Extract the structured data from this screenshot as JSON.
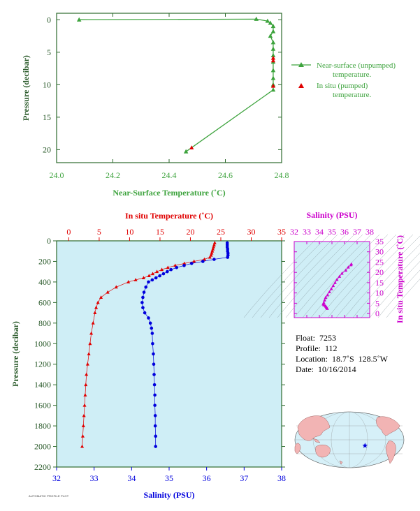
{
  "colors": {
    "green": "#3da33d",
    "axis_green": "#2d6a2d",
    "red": "#e00000",
    "blue": "#0000dd",
    "magenta": "#cc00cc",
    "panel_bg": "#cfeef6",
    "land": "#f2b4b4",
    "ocean": "#d6f0f8",
    "label_dark": "#2a5a2a"
  },
  "info": {
    "float": "Float:  7253",
    "profile": "Profile:  112",
    "location": "Location:  18.7˚S  128.5˚W",
    "date": "Date:  10/16/2014"
  },
  "footnote": "AUTOMATIC PROFILE PLOT",
  "chart_data": [
    {
      "type": "line",
      "panel": "near-surface",
      "xlabel": "Near-Surface Temperature (˚C)",
      "ylabel": "Pressure (decibar)",
      "xlim": [
        24.0,
        24.8
      ],
      "ylim": [
        22,
        -1
      ],
      "xticks": [
        24.0,
        24.2,
        24.4,
        24.6,
        24.8
      ],
      "xtick_labels": [
        "24.0",
        "24.2",
        "24.4",
        "24.6",
        "24.8"
      ],
      "yticks": [
        0,
        5,
        10,
        15,
        20
      ],
      "ytick_labels": [
        "0",
        "5",
        "10",
        "15",
        "20"
      ],
      "legend": {
        "placement": "right",
        "entries": [
          {
            "label": "Near-surface (unpumped)",
            "label2": "temperature.",
            "color": "#3da33d",
            "marker": "triangle-line"
          },
          {
            "label": "In situ (pumped)",
            "label2": "temperature.",
            "color": "#e00000",
            "marker": "triangle"
          }
        ]
      },
      "series": [
        {
          "name": "Near-surface (unpumped) temperature.",
          "color": "#3da33d",
          "points": [
            [
              24.08,
              0.0
            ],
            [
              24.71,
              -0.1
            ],
            [
              24.75,
              0.2
            ],
            [
              24.76,
              0.5
            ],
            [
              24.77,
              1.0
            ],
            [
              24.77,
              1.8
            ],
            [
              24.76,
              2.5
            ],
            [
              24.77,
              3.5
            ],
            [
              24.77,
              4.5
            ],
            [
              24.77,
              5.5
            ],
            [
              24.77,
              6.5
            ],
            [
              24.77,
              7.8
            ],
            [
              24.77,
              9.0
            ],
            [
              24.77,
              10.0
            ],
            [
              24.77,
              10.8
            ],
            [
              24.46,
              20.3
            ]
          ]
        },
        {
          "name": "In situ (pumped) temperature.",
          "color": "#e00000",
          "points": [
            [
              24.77,
              5.9
            ],
            [
              24.77,
              6.3
            ],
            [
              24.77,
              10.2
            ],
            [
              24.48,
              19.7
            ]
          ]
        }
      ]
    },
    {
      "type": "line",
      "panel": "profile",
      "xlabel_top": "In situ Temperature (˚C)",
      "xlabel_bottom": "Salinity (PSU)",
      "ylabel": "Pressure (decibar)",
      "temp_lim": [
        -2,
        35
      ],
      "sal_lim": [
        32,
        38
      ],
      "ylim": [
        2200,
        0
      ],
      "temp_ticks": [
        0,
        5,
        10,
        15,
        20,
        25,
        30,
        35
      ],
      "temp_tick_labels": [
        "0",
        "5",
        "10",
        "15",
        "20",
        "25",
        "30",
        "35"
      ],
      "sal_ticks": [
        32,
        33,
        34,
        35,
        36,
        37,
        38
      ],
      "sal_tick_labels": [
        "32",
        "33",
        "34",
        "35",
        "36",
        "37",
        "38"
      ],
      "yticks": [
        0,
        200,
        400,
        600,
        800,
        1000,
        1200,
        1400,
        1600,
        1800,
        2000,
        2200
      ],
      "ytick_labels": [
        "0",
        "200",
        "400",
        "600",
        "800",
        "1000",
        "1200",
        "1400",
        "1600",
        "1800",
        "2000",
        "2200"
      ],
      "series": [
        {
          "name": "In situ Temperature",
          "color": "#e00000",
          "pressure": [
            20,
            40,
            60,
            80,
            100,
            120,
            140,
            160,
            180,
            200,
            220,
            240,
            260,
            280,
            300,
            320,
            340,
            360,
            380,
            400,
            450,
            500,
            550,
            600,
            650,
            700,
            800,
            900,
            1000,
            1100,
            1200,
            1300,
            1400,
            1500,
            1600,
            1700,
            1800,
            1900,
            2000
          ],
          "values": [
            24.0,
            23.9,
            23.8,
            23.7,
            23.6,
            23.5,
            23.4,
            23.2,
            22.3,
            20.6,
            19.0,
            17.5,
            16.3,
            15.3,
            14.5,
            13.8,
            13.2,
            12.3,
            11.0,
            9.8,
            7.8,
            6.4,
            5.3,
            4.8,
            4.5,
            4.3,
            4.0,
            3.7,
            3.5,
            3.3,
            3.1,
            2.9,
            2.8,
            2.7,
            2.6,
            2.5,
            2.4,
            2.3,
            2.2
          ]
        },
        {
          "name": "Salinity",
          "color": "#0000dd",
          "pressure": [
            20,
            40,
            60,
            80,
            100,
            120,
            140,
            160,
            180,
            200,
            220,
            240,
            260,
            280,
            300,
            320,
            340,
            360,
            380,
            400,
            450,
            500,
            550,
            600,
            650,
            700,
            750,
            800,
            850,
            900,
            1000,
            1100,
            1200,
            1300,
            1400,
            1500,
            1600,
            1700,
            1800,
            1900,
            2000
          ],
          "values": [
            36.55,
            36.55,
            36.55,
            36.56,
            36.56,
            36.57,
            36.57,
            36.56,
            36.2,
            35.9,
            35.6,
            35.4,
            35.2,
            35.05,
            34.95,
            34.85,
            34.75,
            34.65,
            34.55,
            34.45,
            34.38,
            34.33,
            34.3,
            34.28,
            34.3,
            34.35,
            34.45,
            34.5,
            34.53,
            34.55,
            34.56,
            34.58,
            34.59,
            34.6,
            34.61,
            34.62,
            34.62,
            34.63,
            34.63,
            34.64,
            34.64
          ]
        }
      ]
    },
    {
      "type": "scatter",
      "panel": "T-S diagram",
      "xlabel": "Salinity (PSU)",
      "ylabel": "In situ Temperature (˚C)",
      "xlim": [
        32,
        38
      ],
      "ylim": [
        -2,
        35
      ],
      "xticks": [
        32,
        33,
        34,
        35,
        36,
        37,
        38
      ],
      "xtick_labels": [
        "32",
        "33",
        "34",
        "35",
        "36",
        "37",
        "38"
      ],
      "yticks": [
        0,
        5,
        10,
        15,
        20,
        25,
        30,
        35
      ],
      "ytick_labels": [
        "0",
        "5",
        "10",
        "15",
        "20",
        "25",
        "30",
        "35"
      ],
      "series": [
        {
          "name": "T-S",
          "color": "#cc00cc",
          "points": [
            [
              36.55,
              24.0
            ],
            [
              36.5,
              23.6
            ],
            [
              36.3,
              22.5
            ],
            [
              36.1,
              21.0
            ],
            [
              35.8,
              19.5
            ],
            [
              35.6,
              18.0
            ],
            [
              35.4,
              16.5
            ],
            [
              35.25,
              15.0
            ],
            [
              35.1,
              13.5
            ],
            [
              34.95,
              12.0
            ],
            [
              34.8,
              10.5
            ],
            [
              34.65,
              9.0
            ],
            [
              34.5,
              7.8
            ],
            [
              34.42,
              6.5
            ],
            [
              34.35,
              5.3
            ],
            [
              34.32,
              4.6
            ],
            [
              34.35,
              4.2
            ],
            [
              34.45,
              3.8
            ],
            [
              34.52,
              3.4
            ],
            [
              34.56,
              3.0
            ],
            [
              34.6,
              2.7
            ],
            [
              34.63,
              2.4
            ]
          ]
        }
      ]
    },
    {
      "type": "map",
      "panel": "location",
      "marker": {
        "lat": -18.7,
        "lon": -128.5,
        "color": "#0000dd"
      }
    }
  ]
}
